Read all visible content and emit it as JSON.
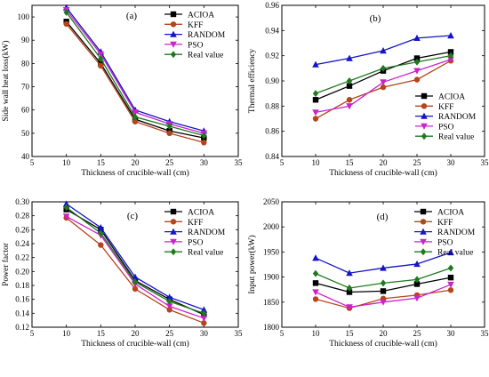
{
  "series_styles": [
    {
      "name": "ACIOA",
      "color": "#000000",
      "marker": "square"
    },
    {
      "name": "KFF",
      "color": "#b5451b",
      "marker": "circle"
    },
    {
      "name": "RANDOM",
      "color": "#1414c8",
      "marker": "triangle-up"
    },
    {
      "name": "PSO",
      "color": "#cc22cc",
      "marker": "triangle-down"
    },
    {
      "name": "Real value",
      "color": "#1e7a1e",
      "marker": "diamond"
    }
  ],
  "chart_data": [
    {
      "panel": "(a)",
      "type": "line",
      "xlabel": "Thickness of crucible-wall  (cm)",
      "ylabel": "Side wall heat loss(kW)",
      "xlim": [
        5,
        35
      ],
      "ylim": [
        40,
        105
      ],
      "xticks": [
        5,
        10,
        15,
        20,
        25,
        30,
        35
      ],
      "yticks": [
        40,
        50,
        60,
        70,
        80,
        90,
        100
      ],
      "ytick_labels": [
        "40",
        "50",
        "60",
        "70",
        "80",
        "90",
        "100"
      ],
      "legend_position": "top-right",
      "x": [
        10,
        15,
        20,
        25,
        30
      ],
      "series": [
        {
          "name": "ACIOA",
          "values": [
            98,
            80,
            56,
            51,
            48
          ]
        },
        {
          "name": "KFF",
          "values": [
            97,
            79,
            55,
            50,
            46
          ]
        },
        {
          "name": "RANDOM",
          "values": [
            104,
            85,
            60,
            55,
            51
          ]
        },
        {
          "name": "PSO",
          "values": [
            103,
            84,
            59,
            54,
            50
          ]
        },
        {
          "name": "Real value",
          "values": [
            102,
            82,
            57,
            53,
            49
          ]
        }
      ]
    },
    {
      "panel": "(b)",
      "type": "line",
      "xlabel": "Thickness of crucible-wall  (cm)",
      "ylabel": "Thermal efficiency",
      "xlim": [
        5,
        35
      ],
      "ylim": [
        0.84,
        0.96
      ],
      "xticks": [
        5,
        10,
        15,
        20,
        25,
        30,
        35
      ],
      "yticks": [
        0.84,
        0.86,
        0.88,
        0.9,
        0.92,
        0.94,
        0.96
      ],
      "ytick_labels": [
        "0.84",
        "0.86",
        "0.88",
        "0.90",
        "0.92",
        "0.94",
        "0.96"
      ],
      "legend_position": "lower-right",
      "x": [
        10,
        15,
        20,
        25,
        30
      ],
      "series": [
        {
          "name": "ACIOA",
          "values": [
            0.885,
            0.896,
            0.908,
            0.918,
            0.923
          ]
        },
        {
          "name": "KFF",
          "values": [
            0.87,
            0.885,
            0.895,
            0.901,
            0.916
          ]
        },
        {
          "name": "RANDOM",
          "values": [
            0.913,
            0.918,
            0.924,
            0.934,
            0.936
          ]
        },
        {
          "name": "PSO",
          "values": [
            0.875,
            0.88,
            0.899,
            0.908,
            0.917
          ]
        },
        {
          "name": "Real value",
          "values": [
            0.89,
            0.9,
            0.91,
            0.915,
            0.92
          ]
        }
      ]
    },
    {
      "panel": "(c)",
      "type": "line",
      "xlabel": "Thickness of crucible-wall  (cm)",
      "ylabel": "Power factor",
      "xlim": [
        5,
        35
      ],
      "ylim": [
        0.12,
        0.3
      ],
      "xticks": [
        5,
        10,
        15,
        20,
        25,
        30,
        35
      ],
      "yticks": [
        0.12,
        0.14,
        0.16,
        0.18,
        0.2,
        0.22,
        0.24,
        0.26,
        0.28,
        0.3
      ],
      "ytick_labels": [
        "0.12",
        "0.14",
        "0.16",
        "0.18",
        "0.20",
        "0.22",
        "0.24",
        "0.26",
        "0.28",
        "0.30"
      ],
      "legend_position": "top-right",
      "x": [
        10,
        15,
        20,
        25,
        30
      ],
      "series": [
        {
          "name": "ACIOA",
          "values": [
            0.289,
            0.26,
            0.187,
            0.16,
            0.138
          ]
        },
        {
          "name": "KFF",
          "values": [
            0.277,
            0.238,
            0.175,
            0.145,
            0.126
          ]
        },
        {
          "name": "RANDOM",
          "values": [
            0.297,
            0.263,
            0.192,
            0.163,
            0.145
          ]
        },
        {
          "name": "PSO",
          "values": [
            0.279,
            0.252,
            0.182,
            0.15,
            0.133
          ]
        },
        {
          "name": "Real value",
          "values": [
            0.292,
            0.255,
            0.185,
            0.157,
            0.14
          ]
        }
      ]
    },
    {
      "panel": "(d)",
      "type": "line",
      "xlabel": "Thickness of crucible-wall  (cm)",
      "ylabel": "Input power(kW)",
      "xlim": [
        5,
        35
      ],
      "ylim": [
        1800,
        2050
      ],
      "xticks": [
        5,
        10,
        15,
        20,
        25,
        30,
        35
      ],
      "yticks": [
        1800,
        1850,
        1900,
        1950,
        2000,
        2050
      ],
      "ytick_labels": [
        "1800",
        "1850",
        "1900",
        "1950",
        "2000",
        "2050"
      ],
      "legend_position": "top-right",
      "x": [
        10,
        15,
        20,
        25,
        30
      ],
      "series": [
        {
          "name": "ACIOA",
          "values": [
            1888,
            1870,
            1872,
            1886,
            1899
          ]
        },
        {
          "name": "KFF",
          "values": [
            1856,
            1838,
            1857,
            1864,
            1874
          ]
        },
        {
          "name": "RANDOM",
          "values": [
            1938,
            1908,
            1918,
            1926,
            1949
          ]
        },
        {
          "name": "PSO",
          "values": [
            1870,
            1840,
            1850,
            1858,
            1885
          ]
        },
        {
          "name": "Real value",
          "values": [
            1907,
            1878,
            1888,
            1895,
            1918
          ]
        }
      ]
    }
  ]
}
